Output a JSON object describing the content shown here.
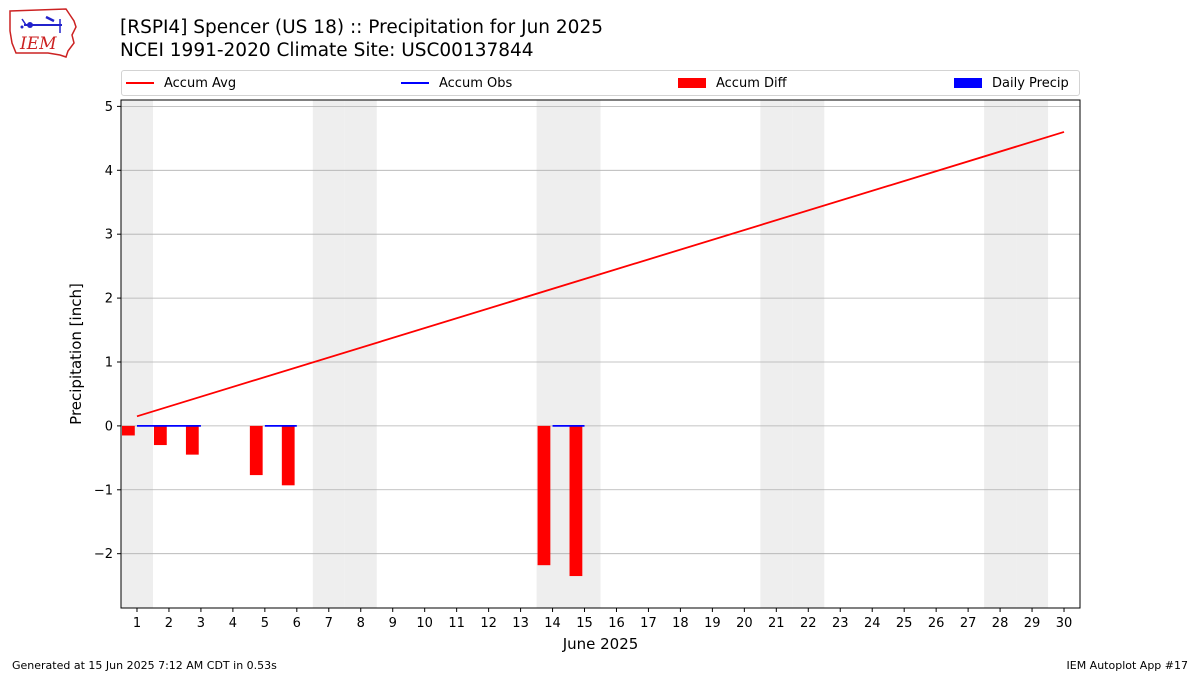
{
  "header": {
    "logo_text": "IEM",
    "title_line1": "[RSPI4] Spencer (US 18) :: Precipitation for Jun 2025",
    "title_line2": "NCEI 1991-2020 Climate Site: USC00137844"
  },
  "footer": {
    "left": "Generated at 15 Jun 2025 7:12 AM CDT in 0.53s",
    "right": "IEM Autoplot App #17"
  },
  "colors": {
    "accum_avg": "#ff0000",
    "accum_obs": "#0000ff",
    "accum_diff": "#ff0000",
    "daily_precip": "#0000ff",
    "weekend_band": "#eeeeee",
    "grid": "#b0b0b0"
  },
  "chart_data": {
    "type": "line",
    "xlabel": "June 2025",
    "ylabel": "Precipitation [inch]",
    "xlim": [
      0.5,
      30.5
    ],
    "ylim": [
      -2.85,
      5.1
    ],
    "x_ticks": [
      1,
      2,
      3,
      4,
      5,
      6,
      7,
      8,
      9,
      10,
      11,
      12,
      13,
      14,
      15,
      16,
      17,
      18,
      19,
      20,
      21,
      22,
      23,
      24,
      25,
      26,
      27,
      28,
      29,
      30
    ],
    "y_ticks": [
      5,
      4,
      3,
      2,
      1,
      0,
      -1,
      -2
    ],
    "y_tick_labels": [
      "5",
      "4",
      "3",
      "2",
      "1",
      "0",
      "−1",
      "−2"
    ],
    "grid": "horizontal",
    "legend_position": "top",
    "weekend_days": [
      1,
      7,
      8,
      14,
      15,
      21,
      22,
      28,
      29
    ],
    "legend": [
      "Accum Avg",
      "Accum Obs",
      "Accum Diff",
      "Daily Precip"
    ],
    "series": [
      {
        "name": "Accum Avg",
        "type": "line",
        "x": [
          1,
          30
        ],
        "values": [
          0.15,
          4.6
        ]
      },
      {
        "name": "Accum Obs",
        "type": "line",
        "x": [
          1,
          2,
          3,
          4,
          5,
          6,
          7,
          8,
          9,
          10,
          11,
          12,
          13,
          14,
          15
        ],
        "values": [
          0,
          0,
          0,
          null,
          0,
          0,
          null,
          null,
          null,
          null,
          null,
          null,
          null,
          0,
          0
        ]
      },
      {
        "name": "Accum Diff",
        "type": "bar",
        "x": [
          1,
          2,
          3,
          5,
          6,
          14,
          15
        ],
        "values": [
          -0.15,
          -0.3,
          -0.45,
          -0.77,
          -0.93,
          -2.18,
          -2.35
        ]
      },
      {
        "name": "Daily Precip",
        "type": "bar",
        "x": [],
        "values": []
      }
    ]
  }
}
